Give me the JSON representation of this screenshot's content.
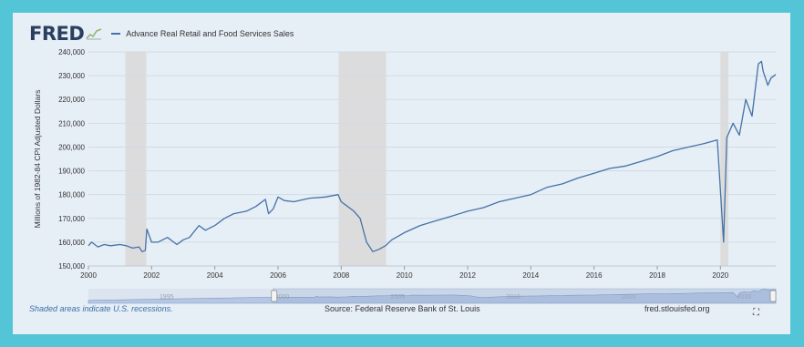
{
  "header": {
    "logo": "FRED",
    "series_label": "Advance Real Retail and Food Services Sales"
  },
  "footer": {
    "note": "Shaded areas indicate U.S. recessions.",
    "source": "Source: Federal Reserve Bank of St. Louis",
    "url": "fred.stlouisfed.org"
  },
  "icons": {
    "logo_graph": "chart-line-icon",
    "fullscreen": "expand-icon"
  },
  "colors": {
    "line": "#4572a7",
    "recession": "#dcdcdc",
    "navigator": "#b6c7e3"
  },
  "navigator": {
    "tick_labels": [
      "1995",
      "2000",
      "2005",
      "2010",
      "2015",
      "2020"
    ]
  },
  "chart_data": {
    "type": "line",
    "title": "",
    "xlabel": "",
    "ylabel": "Millions of 1982-84 CPI Adjusted Dollars",
    "xlim": [
      2000.0,
      2021.75
    ],
    "ylim": [
      150000,
      240000
    ],
    "x_ticks": [
      "2000",
      "2002",
      "2004",
      "2006",
      "2008",
      "2010",
      "2012",
      "2014",
      "2016",
      "2018",
      "2020"
    ],
    "y_ticks": [
      "150,000",
      "160,000",
      "170,000",
      "180,000",
      "190,000",
      "200,000",
      "210,000",
      "220,000",
      "230,000",
      "240,000"
    ],
    "recessions": [
      [
        2001.17,
        2001.83
      ],
      [
        2007.92,
        2009.42
      ],
      [
        2020.0,
        2020.25
      ]
    ],
    "series": [
      {
        "name": "Advance Real Retail and Food Services Sales",
        "x": [
          2000.0,
          2000.1,
          2000.3,
          2000.5,
          2000.7,
          2001.0,
          2001.2,
          2001.4,
          2001.6,
          2001.7,
          2001.8,
          2001.85,
          2002.0,
          2002.2,
          2002.5,
          2002.8,
          2003.0,
          2003.2,
          2003.5,
          2003.7,
          2004.0,
          2004.3,
          2004.6,
          2005.0,
          2005.3,
          2005.6,
          2005.7,
          2005.85,
          2006.0,
          2006.2,
          2006.5,
          2007.0,
          2007.5,
          2007.9,
          2008.0,
          2008.2,
          2008.4,
          2008.6,
          2008.8,
          2009.0,
          2009.2,
          2009.4,
          2009.6,
          2010.0,
          2010.5,
          2011.0,
          2011.5,
          2012.0,
          2012.5,
          2013.0,
          2013.5,
          2014.0,
          2014.5,
          2015.0,
          2015.5,
          2016.0,
          2016.5,
          2017.0,
          2017.5,
          2018.0,
          2018.5,
          2019.0,
          2019.5,
          2019.9,
          2020.1,
          2020.2,
          2020.3,
          2020.4,
          2020.6,
          2020.8,
          2021.0,
          2021.2,
          2021.3,
          2021.35,
          2021.5,
          2021.6,
          2021.75
        ],
        "values": [
          158500,
          160000,
          158000,
          159000,
          158500,
          159000,
          158500,
          157500,
          158000,
          156000,
          156500,
          165500,
          160000,
          160000,
          162000,
          159000,
          161000,
          162000,
          167000,
          165000,
          167000,
          170000,
          172000,
          173000,
          175000,
          178000,
          172000,
          174000,
          179000,
          177500,
          177000,
          178500,
          179000,
          180000,
          177000,
          175000,
          173000,
          170000,
          160000,
          156000,
          157000,
          158500,
          161000,
          164000,
          167000,
          169000,
          171000,
          173000,
          174500,
          177000,
          178500,
          180000,
          183000,
          184500,
          187000,
          189000,
          191000,
          192000,
          194000,
          196000,
          198500,
          200000,
          201500,
          203000,
          160000,
          204000,
          207000,
          210000,
          205000,
          220000,
          213000,
          235000,
          236000,
          232000,
          226000,
          229000,
          230500
        ]
      }
    ]
  }
}
